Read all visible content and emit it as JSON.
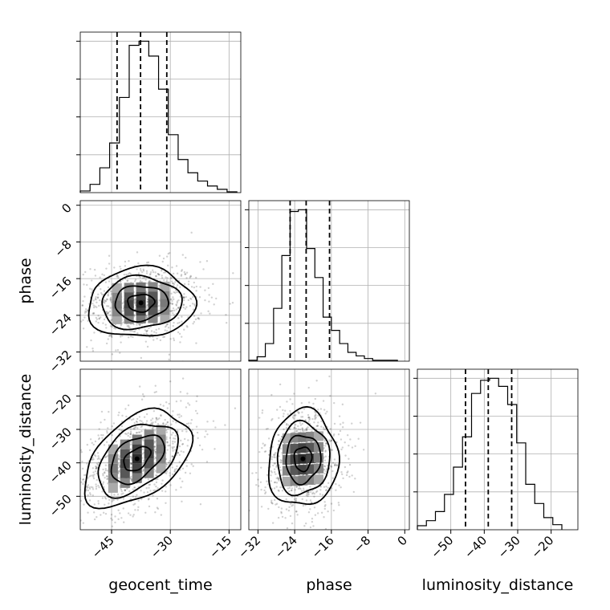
{
  "chart_data": {
    "type": "corner",
    "parameters": [
      "geocent_time",
      "phase",
      "luminosity_distance"
    ],
    "axes": {
      "geocent_time": {
        "label": "geocent_time",
        "range": [
          -53,
          -12
        ],
        "ticks": [
          -45,
          -30,
          -15
        ],
        "tick_labels": [
          "−45",
          "−30",
          "−15"
        ]
      },
      "phase": {
        "label": "phase",
        "range": [
          -34,
          1
        ],
        "ticks": [
          -32,
          -24,
          -16,
          -8,
          0
        ],
        "tick_labels": [
          "−32",
          "−24",
          "−16",
          "−8",
          "0"
        ]
      },
      "luminosity_distance": {
        "label": "luminosity_distance",
        "range": [
          -60,
          -12
        ],
        "ticks": [
          -50,
          -40,
          -30,
          -20
        ],
        "tick_labels": [
          "−50",
          "−40",
          "−30",
          "−20"
        ]
      }
    },
    "grid": true,
    "histograms": {
      "geocent_time": {
        "bins": [
          -53,
          -50.5,
          -48,
          -45.5,
          -43,
          -40.5,
          -38,
          -35.5,
          -33,
          -30.5,
          -28,
          -25.5,
          -23,
          -20.5,
          -18,
          -15.5,
          -13
        ],
        "counts": [
          2,
          10,
          30,
          60,
          115,
          178,
          183,
          165,
          125,
          70,
          40,
          24,
          14,
          8,
          4,
          1
        ],
        "quantiles": [
          -43.6,
          -37.6,
          -30.9
        ]
      },
      "phase": {
        "bins": [
          -34,
          -32.2,
          -30.4,
          -28.6,
          -26.8,
          -25,
          -23.2,
          -21.4,
          -19.6,
          -17.8,
          -16,
          -14.2,
          -12.4,
          -10.6,
          -8.8,
          -7,
          -5.2,
          -3.4,
          -1.6
        ],
        "counts": [
          1,
          5,
          20,
          60,
          120,
          170,
          172,
          128,
          95,
          50,
          35,
          20,
          10,
          6,
          3,
          1,
          1,
          1
        ],
        "quantiles": [
          -25,
          -21.5,
          -16.4
        ]
      },
      "luminosity_distance": {
        "bins": [
          -60,
          -57.3,
          -54.6,
          -51.9,
          -49.2,
          -46.5,
          -43.8,
          -41.1,
          -38.4,
          -35.7,
          -33,
          -30.3,
          -27.6,
          -24.9,
          -22.2,
          -19.5,
          -16.8
        ],
        "counts": [
          4,
          9,
          18,
          35,
          62,
          92,
          135,
          148,
          150,
          142,
          124,
          86,
          45,
          26,
          12,
          5
        ],
        "quantiles": [
          -45.6,
          -38.8,
          -31.8
        ]
      }
    },
    "pairs": [
      {
        "x": "geocent_time",
        "y": "phase",
        "center": [
          -37.5,
          -21.3
        ],
        "sigma": [
          6.8,
          3.8
        ],
        "rho": 0.05,
        "n_points": 900,
        "contour_levels_sigma": [
          0.5,
          1.0,
          1.5,
          2.0
        ]
      },
      {
        "x": "geocent_time",
        "y": "luminosity_distance",
        "center": [
          -38.5,
          -38.8
        ],
        "sigma": [
          6.8,
          7.2
        ],
        "rho": 0.45,
        "n_points": 900,
        "contour_levels_sigma": [
          0.5,
          1.0,
          1.5,
          2.0
        ]
      },
      {
        "x": "phase",
        "y": "luminosity_distance",
        "center": [
          -22.2,
          -38.8
        ],
        "sigma": [
          3.8,
          7.2
        ],
        "rho": 0.05,
        "n_points": 900,
        "contour_levels_sigma": [
          0.5,
          1.0,
          1.5,
          2.0
        ]
      }
    ]
  }
}
